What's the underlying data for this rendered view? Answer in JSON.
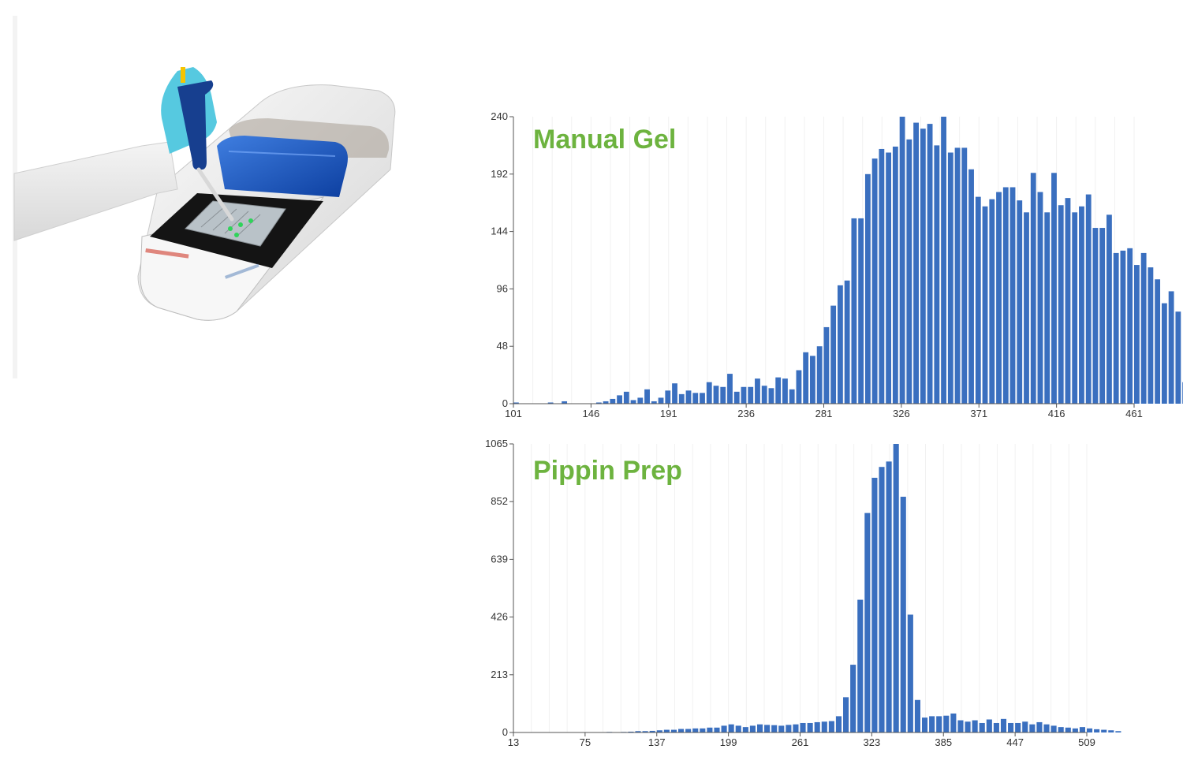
{
  "image": {
    "subject": "pipette-and-instrument-photo"
  },
  "colors": {
    "bar": "#3a6fbf",
    "title": "#6db33f",
    "axis": "#555555",
    "tick_text": "#333333"
  },
  "chart_data": [
    {
      "type": "bar",
      "title": "Manual Gel",
      "xlabel": "",
      "ylabel": "",
      "xlim": [
        101,
        461
      ],
      "ylim": [
        0,
        240
      ],
      "x_ticks": [
        101,
        146,
        191,
        236,
        281,
        326,
        371,
        416,
        461
      ],
      "y_ticks": [
        0,
        48,
        96,
        144,
        192,
        240
      ],
      "grid": false,
      "bin_width": 4,
      "series": [
        {
          "values": [
            1,
            0,
            0,
            0,
            0,
            1,
            0,
            2,
            0,
            0,
            0,
            0,
            1,
            2,
            4,
            7,
            10,
            3,
            5,
            12,
            2,
            5,
            11,
            17,
            8,
            11,
            9,
            9,
            18,
            15,
            14,
            25,
            10,
            14,
            14,
            21,
            15,
            13,
            22,
            21,
            12,
            28,
            43,
            40,
            48,
            64,
            82,
            99,
            103,
            155,
            155,
            192,
            205,
            213,
            210,
            215,
            240,
            221,
            235,
            230,
            234,
            216,
            240,
            210,
            214,
            214,
            196,
            173,
            165,
            171,
            177,
            181,
            181,
            170,
            160,
            193,
            177,
            160,
            193,
            166,
            172,
            160,
            165,
            175,
            147,
            147,
            158,
            126,
            128,
            130,
            116,
            126,
            114,
            104,
            84,
            94,
            77,
            18
          ]
        }
      ]
    },
    {
      "type": "bar",
      "title": "Pippin Prep",
      "xlabel": "",
      "ylabel": "",
      "xlim": [
        13,
        509
      ],
      "ylim": [
        0,
        1065
      ],
      "x_ticks": [
        13,
        75,
        137,
        199,
        261,
        323,
        385,
        447,
        509
      ],
      "y_ticks": [
        0,
        213,
        426,
        639,
        852,
        1065
      ],
      "grid": false,
      "bin_width": 6.2,
      "series": [
        {
          "values": [
            0,
            0,
            0,
            0,
            0,
            0,
            0,
            0,
            0,
            0,
            0,
            1,
            1,
            2,
            1,
            2,
            3,
            5,
            5,
            6,
            8,
            10,
            10,
            13,
            13,
            15,
            15,
            18,
            18,
            25,
            30,
            25,
            20,
            25,
            30,
            28,
            27,
            25,
            28,
            30,
            35,
            35,
            38,
            40,
            42,
            60,
            130,
            250,
            490,
            810,
            940,
            980,
            1000,
            1065,
            870,
            435,
            120,
            55,
            60,
            60,
            62,
            70,
            45,
            40,
            45,
            35,
            48,
            35,
            50,
            35,
            35,
            40,
            30,
            38,
            30,
            25,
            20,
            18,
            15,
            20,
            15,
            12,
            10,
            8,
            5
          ]
        }
      ]
    }
  ]
}
